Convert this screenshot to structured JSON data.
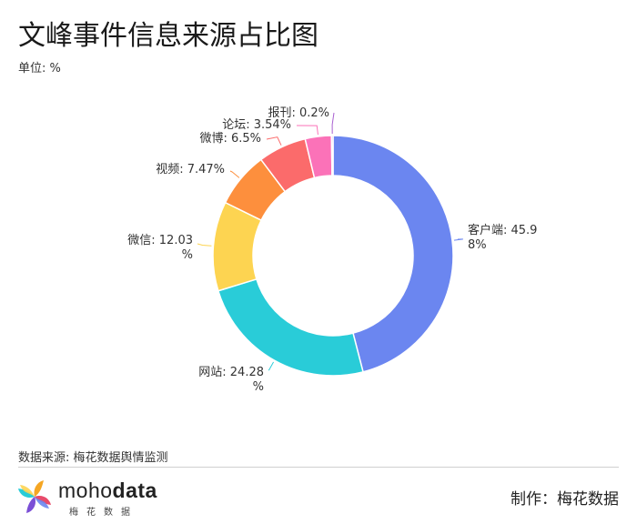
{
  "header": {
    "title": "文峰事件信息来源占比图",
    "unit": "单位: %"
  },
  "chart_data": {
    "type": "pie",
    "variant": "donut",
    "categories": [
      "客户端",
      "网站",
      "微信",
      "视频",
      "微博",
      "论坛",
      "报刊"
    ],
    "values": [
      45.98,
      24.28,
      12.03,
      7.47,
      6.5,
      3.54,
      0.2
    ],
    "labels": [
      [
        "客户端: 45.9",
        "8%"
      ],
      [
        "网站: 24.28",
        "%"
      ],
      [
        "微信: 12.03",
        "%"
      ],
      [
        "视频: 7.47%"
      ],
      [
        "微博: 6.5%"
      ],
      [
        "论坛: 3.54%"
      ],
      [
        "报刊: 0.2%"
      ]
    ],
    "colors": [
      "#6b86f0",
      "#29ccd8",
      "#fdd451",
      "#fd8f3d",
      "#fb6b6b",
      "#fb72b8",
      "#a85fd0"
    ],
    "start": "top, clockwise"
  },
  "footer": {
    "source": "数据来源: 梅花数据舆情监测",
    "logo_main": "moho",
    "logo_bold": "data",
    "logo_sub": "梅花数据",
    "credit": "制作：梅花数据"
  }
}
